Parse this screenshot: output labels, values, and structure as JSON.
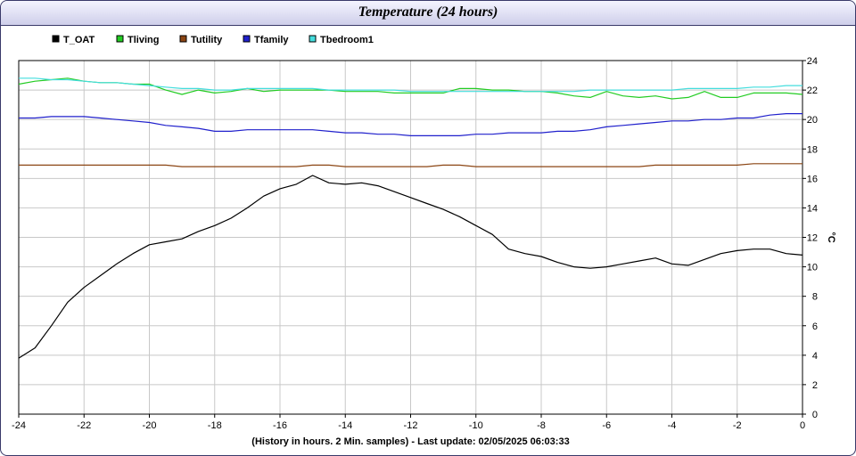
{
  "window": {
    "title": "Temperature (24 hours)"
  },
  "chart_data": {
    "type": "line",
    "title": "Temperature (24 hours)",
    "xlabel": "(History in hours. 2 Min. samples) - Last update: 02/05/2025 06:03:33",
    "ylabel": "°C",
    "xlim": [
      -24,
      0
    ],
    "ylim": [
      0,
      24
    ],
    "x_ticks": [
      -24,
      -22,
      -20,
      -18,
      -16,
      -14,
      -12,
      -10,
      -8,
      -6,
      -4,
      -2,
      0
    ],
    "y_ticks": [
      0,
      2,
      4,
      6,
      8,
      10,
      12,
      14,
      16,
      18,
      20,
      22,
      24
    ],
    "grid": true,
    "legend_position": "top-left",
    "x": [
      -24,
      -23.5,
      -23,
      -22.5,
      -22,
      -21.5,
      -21,
      -20.5,
      -20,
      -19.5,
      -19,
      -18.5,
      -18,
      -17.5,
      -17,
      -16.5,
      -16,
      -15.5,
      -15,
      -14.5,
      -14,
      -13.5,
      -13,
      -12.5,
      -12,
      -11.5,
      -11,
      -10.5,
      -10,
      -9.5,
      -9,
      -8.5,
      -8,
      -7.5,
      -7,
      -6.5,
      -6,
      -5.5,
      -5,
      -4.5,
      -4,
      -3.5,
      -3,
      -2.5,
      -2,
      -1.5,
      -1,
      -0.5,
      0
    ],
    "series": [
      {
        "name": "T_OAT",
        "color": "#000000",
        "values": [
          3.8,
          4.5,
          6.0,
          7.6,
          8.6,
          9.4,
          10.2,
          10.9,
          11.5,
          11.7,
          11.9,
          12.4,
          12.8,
          13.3,
          14.0,
          14.8,
          15.3,
          15.6,
          16.2,
          15.7,
          15.6,
          15.7,
          15.5,
          15.1,
          14.7,
          14.3,
          13.9,
          13.4,
          12.8,
          12.2,
          11.2,
          10.9,
          10.7,
          10.3,
          10.0,
          9.9,
          10.0,
          10.2,
          10.4,
          10.6,
          10.2,
          10.1,
          10.5,
          10.9,
          11.1,
          11.2,
          11.2,
          10.9,
          10.8
        ]
      },
      {
        "name": "Tliving",
        "color": "#22cc22",
        "values": [
          22.4,
          22.6,
          22.7,
          22.8,
          22.6,
          22.5,
          22.5,
          22.4,
          22.4,
          22.0,
          21.7,
          22.0,
          21.8,
          21.9,
          22.1,
          21.9,
          22.0,
          22.0,
          22.0,
          22.0,
          21.9,
          21.9,
          21.9,
          21.8,
          21.8,
          21.8,
          21.8,
          22.1,
          22.1,
          22.0,
          22.0,
          21.9,
          21.9,
          21.8,
          21.6,
          21.5,
          21.9,
          21.6,
          21.5,
          21.6,
          21.4,
          21.5,
          21.9,
          21.5,
          21.5,
          21.8,
          21.8,
          21.8,
          21.7
        ]
      },
      {
        "name": "Tutility",
        "color": "#8b4513",
        "values": [
          16.9,
          16.9,
          16.9,
          16.9,
          16.9,
          16.9,
          16.9,
          16.9,
          16.9,
          16.9,
          16.8,
          16.8,
          16.8,
          16.8,
          16.8,
          16.8,
          16.8,
          16.8,
          16.9,
          16.9,
          16.8,
          16.8,
          16.8,
          16.8,
          16.8,
          16.8,
          16.9,
          16.9,
          16.8,
          16.8,
          16.8,
          16.8,
          16.8,
          16.8,
          16.8,
          16.8,
          16.8,
          16.8,
          16.8,
          16.9,
          16.9,
          16.9,
          16.9,
          16.9,
          16.9,
          17.0,
          17.0,
          17.0,
          17.0
        ]
      },
      {
        "name": "Tfamily",
        "color": "#2020cc",
        "values": [
          20.1,
          20.1,
          20.2,
          20.2,
          20.2,
          20.1,
          20.0,
          19.9,
          19.8,
          19.6,
          19.5,
          19.4,
          19.2,
          19.2,
          19.3,
          19.3,
          19.3,
          19.3,
          19.3,
          19.2,
          19.1,
          19.1,
          19.0,
          19.0,
          18.9,
          18.9,
          18.9,
          18.9,
          19.0,
          19.0,
          19.1,
          19.1,
          19.1,
          19.2,
          19.2,
          19.3,
          19.5,
          19.6,
          19.7,
          19.8,
          19.9,
          19.9,
          20.0,
          20.0,
          20.1,
          20.1,
          20.3,
          20.4,
          20.4
        ]
      },
      {
        "name": "Tbedroom1",
        "color": "#44dddd",
        "values": [
          22.8,
          22.8,
          22.7,
          22.7,
          22.6,
          22.5,
          22.5,
          22.4,
          22.3,
          22.2,
          22.1,
          22.1,
          22.0,
          22.0,
          22.1,
          22.1,
          22.1,
          22.1,
          22.1,
          22.0,
          22.0,
          22.0,
          22.0,
          22.0,
          21.9,
          21.9,
          21.9,
          21.9,
          21.9,
          21.9,
          21.9,
          21.9,
          21.9,
          21.9,
          21.9,
          22.0,
          22.0,
          22.0,
          22.0,
          22.0,
          22.0,
          22.1,
          22.1,
          22.1,
          22.1,
          22.2,
          22.2,
          22.3,
          22.3
        ]
      }
    ]
  }
}
